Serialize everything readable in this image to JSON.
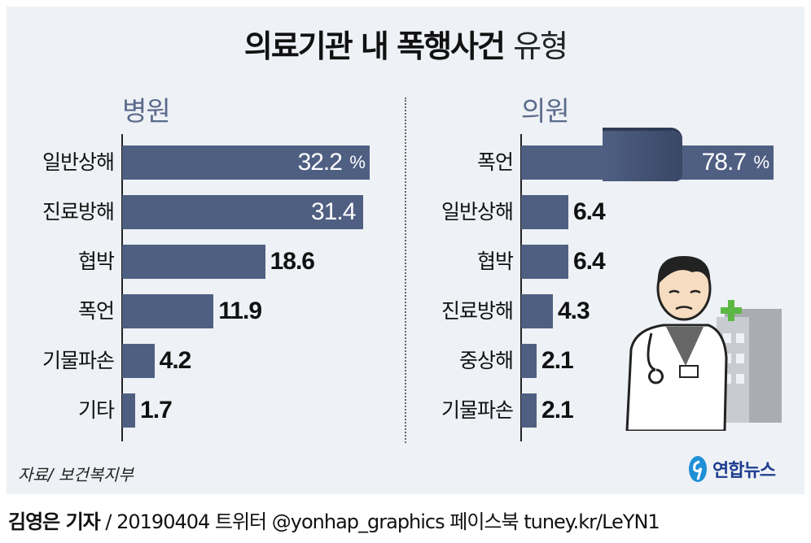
{
  "title": {
    "main": "의료기관 내 폭행사건",
    "suffix": "유형"
  },
  "chart_data": [
    {
      "type": "bar",
      "orientation": "horizontal",
      "title": "병원",
      "unit": "%",
      "categories": [
        "일반상해",
        "진료방해",
        "협박",
        "폭언",
        "기물파손",
        "기타"
      ],
      "values": [
        32.2,
        31.4,
        18.6,
        11.9,
        4.2,
        1.7
      ],
      "labels": [
        "32.2",
        "31.4",
        "18.6",
        "11.9",
        "4.2",
        "1.7"
      ]
    },
    {
      "type": "bar",
      "orientation": "horizontal",
      "title": "의원",
      "unit": "%",
      "broken_axis_first_bar": true,
      "categories": [
        "폭언",
        "일반상해",
        "협박",
        "진료방해",
        "중상해",
        "기물파손"
      ],
      "values": [
        78.7,
        6.4,
        6.4,
        4.3,
        2.1,
        2.1
      ],
      "labels": [
        "78.7",
        "6.4",
        "6.4",
        "4.3",
        "2.1",
        "2.1"
      ]
    }
  ],
  "colors": {
    "bar": "#4f5f82",
    "panel": "#eef1f5",
    "section": "#5a6a8c"
  },
  "source": "자료/ 보건복지부",
  "logo": "연합뉴스",
  "credit": {
    "reporter": "김영은 기자",
    "rest": " / 20190404   트위터 @yonhap_graphics  페이스북 tuney.kr/LeYN1"
  }
}
